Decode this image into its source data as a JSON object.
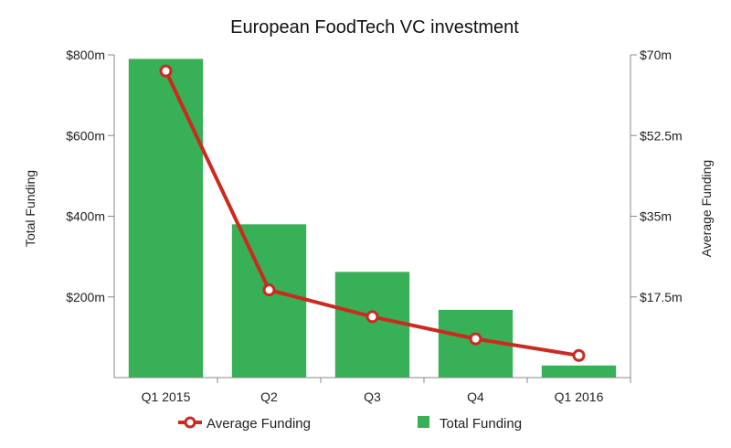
{
  "chart_data": {
    "type": "bar",
    "title": "European FoodTech VC investment",
    "categories": [
      "Q1 2015",
      "Q2",
      "Q3",
      "Q4",
      "Q1 2016"
    ],
    "series": [
      {
        "name": "Total Funding",
        "type": "bar",
        "axis": "left",
        "color": "#37b058",
        "values": [
          790,
          380,
          262,
          168,
          30
        ]
      },
      {
        "name": "Average Funding",
        "type": "line",
        "axis": "right",
        "color": "#cc2a1f",
        "values": [
          66.5,
          19,
          13.2,
          8.4,
          4.8
        ]
      }
    ],
    "ylabel": "Total Funding",
    "y2label": "Average Funding",
    "ylim": [
      0,
      800
    ],
    "y2lim": [
      0,
      70
    ],
    "yticks": [
      {
        "value": 200,
        "label": "$200m"
      },
      {
        "value": 400,
        "label": "$400m"
      },
      {
        "value": 600,
        "label": "$600m"
      },
      {
        "value": 800,
        "label": "$800m"
      }
    ],
    "y2ticks": [
      {
        "value": 17.5,
        "label": "$17.5m"
      },
      {
        "value": 35,
        "label": "$35m"
      },
      {
        "value": 52.5,
        "label": "$52.5m"
      },
      {
        "value": 70,
        "label": "$70m"
      }
    ],
    "legend": {
      "position": "bottom",
      "items": [
        {
          "label": "Average Funding",
          "marker": "line-circle",
          "color": "#cc2a1f"
        },
        {
          "label": "Total Funding",
          "marker": "square",
          "color": "#37b058"
        }
      ]
    },
    "grid": false
  }
}
